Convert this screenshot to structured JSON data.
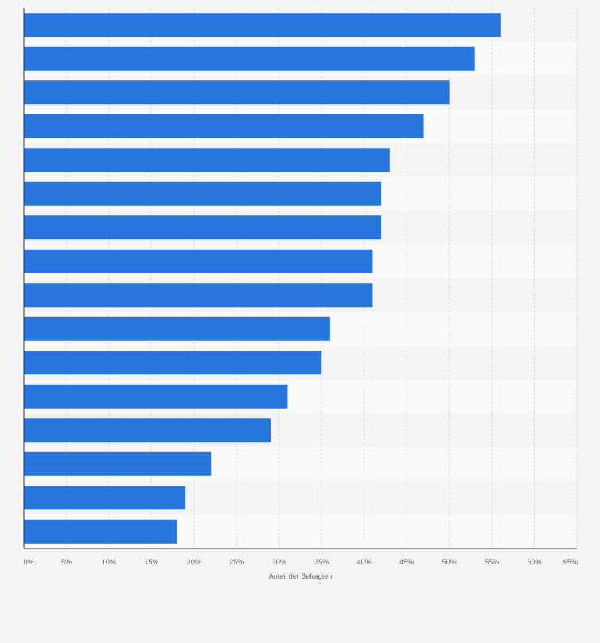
{
  "chart_data": {
    "type": "bar",
    "orientation": "horizontal",
    "xlabel": "Anteil der Befragten",
    "xlim": [
      0,
      65
    ],
    "x_ticks": [
      0,
      5,
      10,
      15,
      20,
      25,
      30,
      35,
      40,
      45,
      50,
      55,
      60,
      65
    ],
    "x_tick_labels": [
      "0%",
      "5%",
      "10%",
      "15%",
      "20%",
      "25%",
      "30%",
      "35%",
      "40%",
      "45%",
      "50%",
      "55%",
      "60%",
      "65%"
    ],
    "values": [
      56,
      53,
      50,
      47,
      43,
      42,
      42,
      41,
      41,
      36,
      35,
      31,
      29,
      22,
      19,
      18
    ],
    "grid": true,
    "bar_color": "#2876dd"
  },
  "colors": {
    "band_light": "#fafafa",
    "band_dark": "#f4f4f4",
    "grid": "#d9d9d9",
    "axis": "#333333"
  }
}
